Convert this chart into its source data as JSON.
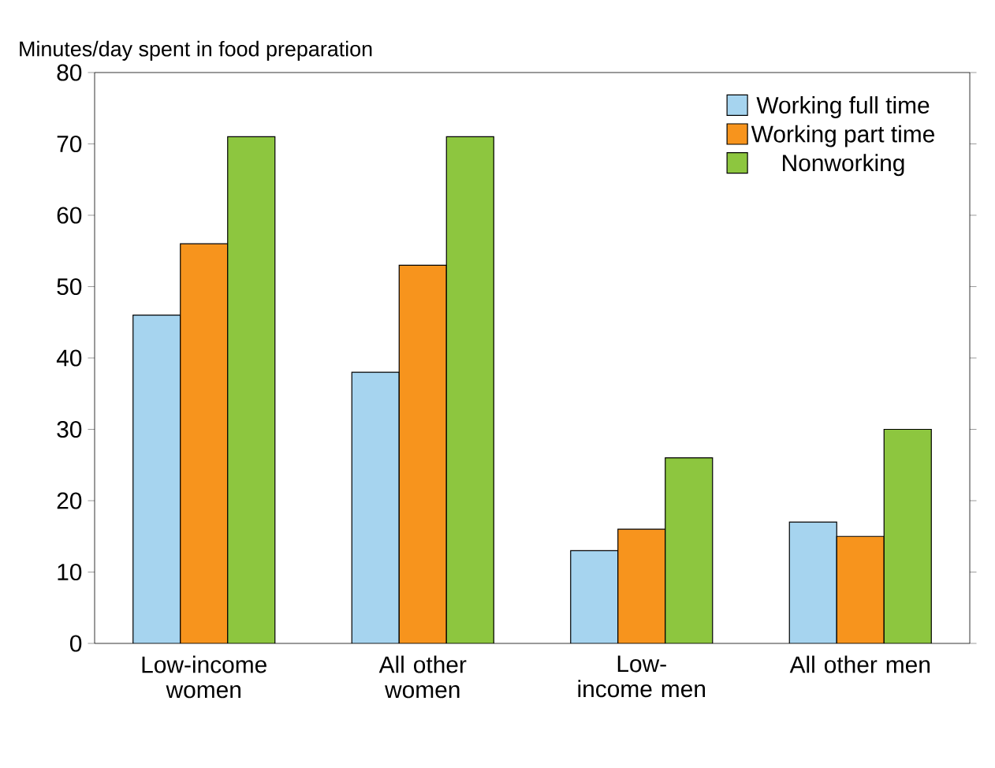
{
  "chart_data": {
    "type": "bar",
    "ylabel": "Minutes/day spent in food preparation",
    "categories": [
      "Low-income women",
      "All other women",
      "Low-income men",
      "All other men"
    ],
    "series": [
      {
        "name": "Working full time",
        "color": "#a6d4ef",
        "values": [
          46,
          38,
          13,
          17
        ]
      },
      {
        "name": "Working part time",
        "color": "#f7941d",
        "values": [
          56,
          53,
          16,
          15
        ]
      },
      {
        "name": "Nonworking",
        "color": "#8dc63f",
        "values": [
          71,
          71,
          26,
          30
        ]
      }
    ],
    "ylim": [
      0,
      80
    ],
    "yticks": [
      0,
      10,
      20,
      30,
      40,
      50,
      60,
      70,
      80
    ],
    "grid": false,
    "legend": "top right"
  }
}
